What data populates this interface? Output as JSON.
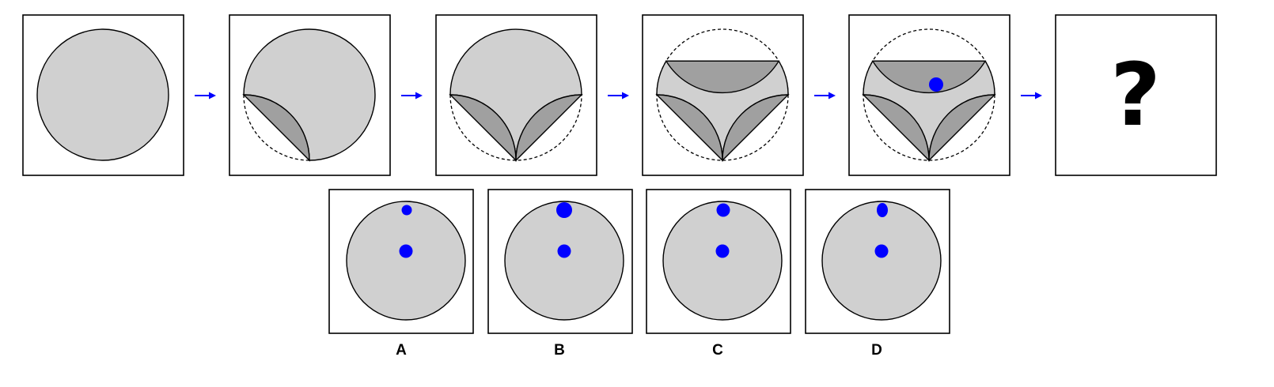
{
  "colors": {
    "light_fill": "#d0d0d0",
    "dark_fill": "#a0a0a0",
    "stroke": "#000000",
    "dot": "#0000ff",
    "arrow": "#0000ff",
    "background": "#ffffff"
  },
  "question": {
    "symbol": "?"
  },
  "options": [
    {
      "label": "A"
    },
    {
      "label": "B"
    },
    {
      "label": "C"
    },
    {
      "label": "D"
    }
  ]
}
